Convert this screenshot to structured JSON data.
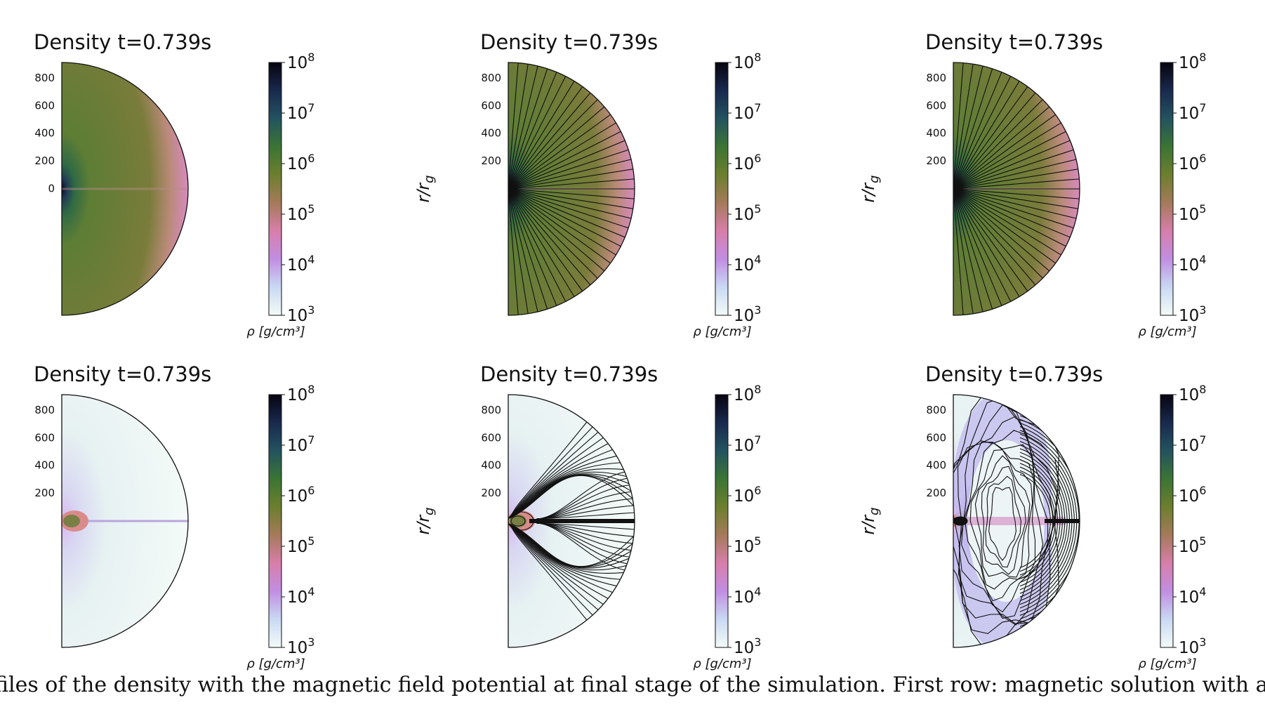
{
  "colormap": {
    "stops": [
      "#f3fbf8",
      "#c9d9f3",
      "#c18ee2",
      "#d87eaa",
      "#a57a5a",
      "#6c7f2e",
      "#3b7434",
      "#23535f",
      "#19294e",
      "#07040f"
    ],
    "ticks": [
      {
        "base": "10",
        "exp": "3"
      },
      {
        "base": "10",
        "exp": "4"
      },
      {
        "base": "10",
        "exp": "5"
      },
      {
        "base": "10",
        "exp": "6"
      },
      {
        "base": "10",
        "exp": "7"
      },
      {
        "base": "10",
        "exp": "8"
      }
    ],
    "label": "ρ [g/cm³]"
  },
  "chart_data": [
    {
      "type": "heatmap",
      "title": "Density t=0.739s",
      "ylabel": "",
      "yticks": [
        "800",
        "600",
        "400",
        "200",
        "0"
      ],
      "field_lines": "none",
      "colorbar_range": [
        1000,
        100000000
      ],
      "density_state": "dense-smooth"
    },
    {
      "type": "heatmap",
      "title": "Density t=0.739s",
      "ylabel": "r/r_g",
      "yticks": [
        "800",
        "600",
        "400",
        "200"
      ],
      "field_lines": "radial",
      "colorbar_range": [
        1000,
        100000000
      ],
      "density_state": "dense-smooth"
    },
    {
      "type": "heatmap",
      "title": "Density t=0.739s",
      "ylabel": "r/r_g",
      "yticks": [
        "800",
        "600",
        "400",
        "200"
      ],
      "field_lines": "radial",
      "colorbar_range": [
        1000,
        100000000
      ],
      "density_state": "dense-smooth"
    },
    {
      "type": "heatmap",
      "title": "Density t=0.739s",
      "ylabel": "",
      "yticks": [
        "800",
        "600",
        "400",
        "200"
      ],
      "field_lines": "none",
      "colorbar_range": [
        1000,
        100000000
      ],
      "density_state": "evacuated-disk"
    },
    {
      "type": "heatmap",
      "title": "Density t=0.739s",
      "ylabel": "r/r_g",
      "yticks": [
        "800",
        "600",
        "400",
        "200"
      ],
      "field_lines": "lobed",
      "colorbar_range": [
        1000,
        100000000
      ],
      "density_state": "evacuated-disk"
    },
    {
      "type": "heatmap",
      "title": "Density t=0.739s",
      "ylabel": "r/r_g",
      "yticks": [
        "800",
        "600",
        "400",
        "200"
      ],
      "field_lines": "turbulent",
      "colorbar_range": [
        1000,
        100000000
      ],
      "density_state": "evacuated-turbulent"
    }
  ],
  "caption": "files of the density with the magnetic field potential at final stage of the simulation. First row: magnetic solution with a uniform, radial"
}
